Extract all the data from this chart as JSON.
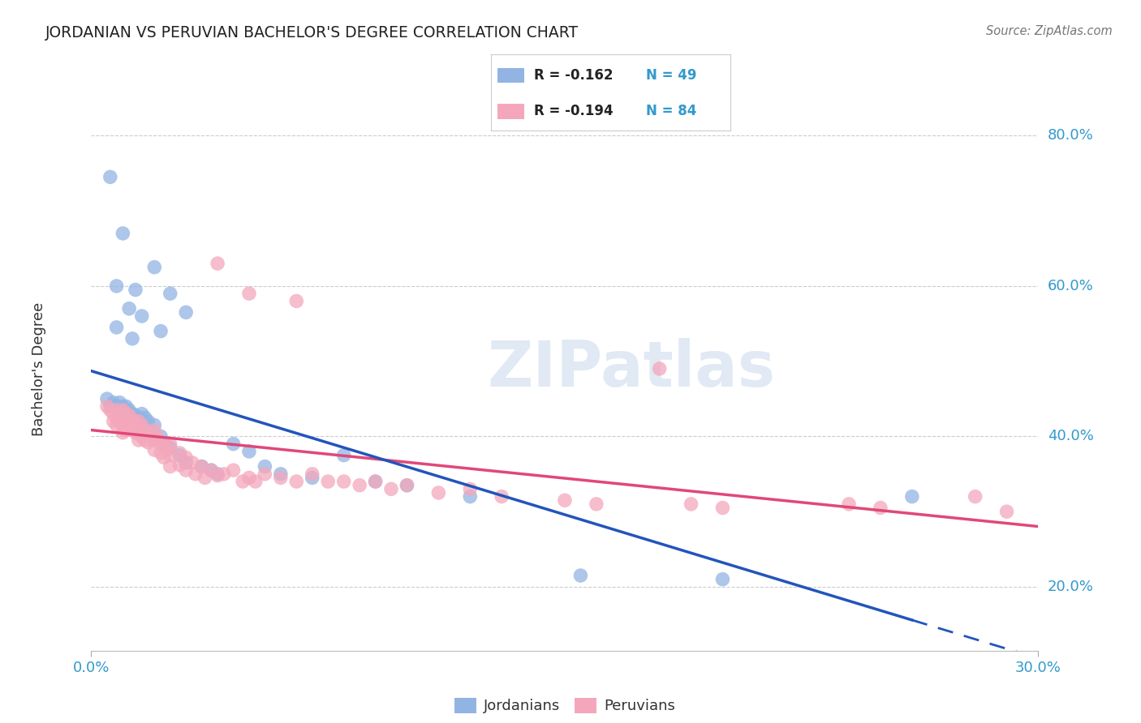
{
  "title": "JORDANIAN VS PERUVIAN BACHELOR'S DEGREE CORRELATION CHART",
  "source": "Source: ZipAtlas.com",
  "ylabel": "Bachelor's Degree",
  "xtick_left": "0.0%",
  "xtick_right": "30.0%",
  "xlim": [
    0.0,
    0.3
  ],
  "ylim": [
    0.115,
    0.865
  ],
  "yticks": [
    0.2,
    0.4,
    0.6,
    0.8
  ],
  "ytick_labels": [
    "20.0%",
    "40.0%",
    "60.0%",
    "80.0%"
  ],
  "legend_r1": "R = -0.162",
  "legend_n1": "N = 49",
  "legend_r2": "R = -0.194",
  "legend_n2": "N = 84",
  "blue_color": "#92b4e3",
  "pink_color": "#f4a7bb",
  "line_blue": "#2255bb",
  "line_pink": "#e04878",
  "watermark_color": "#c8d8ec",
  "background_color": "#ffffff",
  "grid_color": "#cccccc",
  "title_color": "#222222",
  "tick_color": "#3399cc",
  "source_color": "#777777",
  "jordanians": [
    [
      0.006,
      0.745
    ],
    [
      0.01,
      0.67
    ],
    [
      0.02,
      0.625
    ],
    [
      0.008,
      0.6
    ],
    [
      0.014,
      0.595
    ],
    [
      0.012,
      0.57
    ],
    [
      0.016,
      0.56
    ],
    [
      0.008,
      0.545
    ],
    [
      0.013,
      0.53
    ],
    [
      0.025,
      0.59
    ],
    [
      0.03,
      0.565
    ],
    [
      0.022,
      0.54
    ],
    [
      0.005,
      0.45
    ],
    [
      0.006,
      0.44
    ],
    [
      0.007,
      0.445
    ],
    [
      0.008,
      0.435
    ],
    [
      0.008,
      0.44
    ],
    [
      0.009,
      0.445
    ],
    [
      0.01,
      0.44
    ],
    [
      0.01,
      0.435
    ],
    [
      0.011,
      0.44
    ],
    [
      0.012,
      0.435
    ],
    [
      0.013,
      0.43
    ],
    [
      0.014,
      0.428
    ],
    [
      0.015,
      0.425
    ],
    [
      0.016,
      0.43
    ],
    [
      0.017,
      0.425
    ],
    [
      0.018,
      0.42
    ],
    [
      0.02,
      0.415
    ],
    [
      0.022,
      0.4
    ],
    [
      0.023,
      0.39
    ],
    [
      0.025,
      0.385
    ],
    [
      0.028,
      0.375
    ],
    [
      0.03,
      0.365
    ],
    [
      0.035,
      0.36
    ],
    [
      0.038,
      0.355
    ],
    [
      0.04,
      0.35
    ],
    [
      0.045,
      0.39
    ],
    [
      0.05,
      0.38
    ],
    [
      0.055,
      0.36
    ],
    [
      0.06,
      0.35
    ],
    [
      0.07,
      0.345
    ],
    [
      0.08,
      0.375
    ],
    [
      0.09,
      0.34
    ],
    [
      0.1,
      0.335
    ],
    [
      0.12,
      0.32
    ],
    [
      0.155,
      0.215
    ],
    [
      0.2,
      0.21
    ],
    [
      0.26,
      0.32
    ]
  ],
  "peruvians": [
    [
      0.005,
      0.44
    ],
    [
      0.006,
      0.435
    ],
    [
      0.007,
      0.43
    ],
    [
      0.007,
      0.42
    ],
    [
      0.008,
      0.435
    ],
    [
      0.008,
      0.425
    ],
    [
      0.008,
      0.415
    ],
    [
      0.009,
      0.43
    ],
    [
      0.009,
      0.42
    ],
    [
      0.01,
      0.435
    ],
    [
      0.01,
      0.425
    ],
    [
      0.01,
      0.415
    ],
    [
      0.01,
      0.405
    ],
    [
      0.011,
      0.43
    ],
    [
      0.011,
      0.418
    ],
    [
      0.011,
      0.408
    ],
    [
      0.012,
      0.428
    ],
    [
      0.012,
      0.415
    ],
    [
      0.013,
      0.422
    ],
    [
      0.013,
      0.41
    ],
    [
      0.014,
      0.418
    ],
    [
      0.014,
      0.405
    ],
    [
      0.015,
      0.42
    ],
    [
      0.015,
      0.408
    ],
    [
      0.015,
      0.395
    ],
    [
      0.016,
      0.415
    ],
    [
      0.016,
      0.4
    ],
    [
      0.017,
      0.408
    ],
    [
      0.017,
      0.395
    ],
    [
      0.018,
      0.405
    ],
    [
      0.018,
      0.392
    ],
    [
      0.019,
      0.4
    ],
    [
      0.02,
      0.408
    ],
    [
      0.02,
      0.395
    ],
    [
      0.02,
      0.382
    ],
    [
      0.021,
      0.398
    ],
    [
      0.022,
      0.392
    ],
    [
      0.022,
      0.378
    ],
    [
      0.023,
      0.388
    ],
    [
      0.023,
      0.372
    ],
    [
      0.024,
      0.382
    ],
    [
      0.025,
      0.39
    ],
    [
      0.025,
      0.375
    ],
    [
      0.025,
      0.36
    ],
    [
      0.028,
      0.378
    ],
    [
      0.028,
      0.362
    ],
    [
      0.03,
      0.372
    ],
    [
      0.03,
      0.355
    ],
    [
      0.032,
      0.365
    ],
    [
      0.033,
      0.35
    ],
    [
      0.035,
      0.36
    ],
    [
      0.036,
      0.345
    ],
    [
      0.038,
      0.355
    ],
    [
      0.04,
      0.63
    ],
    [
      0.04,
      0.348
    ],
    [
      0.042,
      0.35
    ],
    [
      0.045,
      0.355
    ],
    [
      0.048,
      0.34
    ],
    [
      0.05,
      0.59
    ],
    [
      0.05,
      0.345
    ],
    [
      0.052,
      0.34
    ],
    [
      0.055,
      0.35
    ],
    [
      0.06,
      0.345
    ],
    [
      0.065,
      0.58
    ],
    [
      0.065,
      0.34
    ],
    [
      0.07,
      0.35
    ],
    [
      0.075,
      0.34
    ],
    [
      0.08,
      0.34
    ],
    [
      0.085,
      0.335
    ],
    [
      0.09,
      0.34
    ],
    [
      0.095,
      0.33
    ],
    [
      0.1,
      0.335
    ],
    [
      0.11,
      0.325
    ],
    [
      0.12,
      0.33
    ],
    [
      0.13,
      0.32
    ],
    [
      0.15,
      0.315
    ],
    [
      0.16,
      0.31
    ],
    [
      0.18,
      0.49
    ],
    [
      0.19,
      0.31
    ],
    [
      0.2,
      0.305
    ],
    [
      0.24,
      0.31
    ],
    [
      0.25,
      0.305
    ],
    [
      0.28,
      0.32
    ],
    [
      0.29,
      0.3
    ]
  ]
}
